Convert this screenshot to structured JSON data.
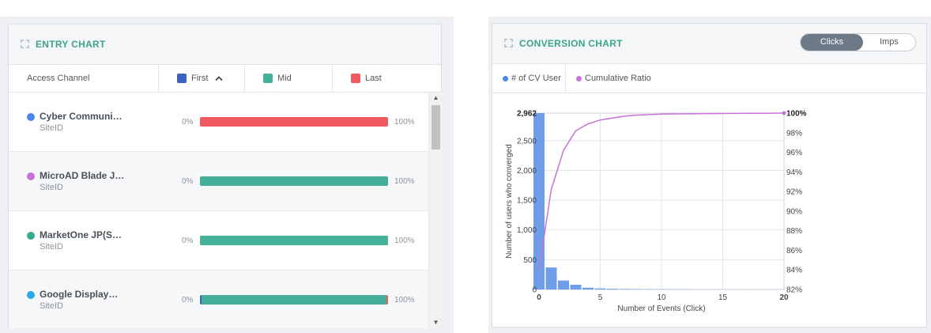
{
  "entry_chart": {
    "title": "ENTRY CHART",
    "column_header": "Access Channel",
    "legend": [
      {
        "label": "First",
        "color": "#3b63c4",
        "sorted": true
      },
      {
        "label": "Mid",
        "color": "#45b09a"
      },
      {
        "label": "Last",
        "color": "#ee5a5f"
      }
    ],
    "rows": [
      {
        "name": "Cyber Communi…",
        "sub": "SiteID",
        "dot_color": "#4a86e8",
        "min": "0%",
        "max": "100%",
        "first": 0,
        "mid": 0,
        "last": 100
      },
      {
        "name": "MicroAD Blade J…",
        "sub": "SiteID",
        "dot_color": "#c773d6",
        "min": "0%",
        "max": "100%",
        "first": 0,
        "mid": 100,
        "last": 0
      },
      {
        "name": "MarketOne JP(S…",
        "sub": "SiteID",
        "dot_color": "#37a98e",
        "min": "0%",
        "max": "100%",
        "first": 0,
        "mid": 100,
        "last": 0
      },
      {
        "name": "Google Display…",
        "sub": "SiteID",
        "dot_color": "#2aa7e8",
        "min": "0%",
        "max": "100%",
        "first": 1,
        "mid": 98,
        "last": 1
      }
    ]
  },
  "conversion_chart": {
    "title": "CONVERSION CHART",
    "toggle": {
      "active": "Clicks",
      "inactive": "Imps"
    },
    "legend": [
      {
        "label": "# of CV User",
        "color": "#4a86e8"
      },
      {
        "label": "Cumulative Ratio",
        "color": "#c773d6"
      }
    ]
  },
  "chart_data": {
    "type": "bar",
    "xlabel": "Number of Events (Click)",
    "ylabel": "Number of users who converged",
    "x_ticks": [
      "0",
      "5",
      "10",
      "15",
      "20"
    ],
    "y_ticks": [
      "0",
      "500",
      "1,000",
      "1,500",
      "2,000",
      "2,500",
      "2,962"
    ],
    "y2_ticks": [
      "82%",
      "84%",
      "86%",
      "88%",
      "90%",
      "92%",
      "94%",
      "96%",
      "98%",
      "100%"
    ],
    "ylim": [
      0,
      2962
    ],
    "y2lim": [
      82,
      100
    ],
    "xlim": [
      0,
      20
    ],
    "series": [
      {
        "name": "# of CV User",
        "type": "bar",
        "color": "#6f9de8",
        "x": [
          0,
          1,
          2,
          3,
          4,
          5,
          6,
          7,
          8,
          9,
          10,
          11,
          12,
          13,
          14,
          15,
          16,
          17,
          18,
          19,
          20
        ],
        "values": [
          2962,
          370,
          150,
          80,
          30,
          18,
          12,
          9,
          7,
          6,
          5,
          4,
          4,
          3,
          3,
          3,
          2,
          2,
          2,
          2,
          2
        ]
      },
      {
        "name": "Cumulative Ratio",
        "type": "line",
        "color": "#c773d6",
        "x": [
          0,
          1,
          2,
          3,
          4,
          5,
          6,
          7,
          8,
          9,
          10,
          11,
          12,
          13,
          14,
          15,
          16,
          17,
          18,
          19,
          20
        ],
        "values": [
          84.0,
          92.2,
          96.2,
          98.2,
          98.9,
          99.3,
          99.5,
          99.7,
          99.8,
          99.85,
          99.9,
          99.92,
          99.93,
          99.94,
          99.95,
          99.96,
          99.97,
          99.98,
          99.98,
          99.99,
          100
        ]
      }
    ]
  }
}
